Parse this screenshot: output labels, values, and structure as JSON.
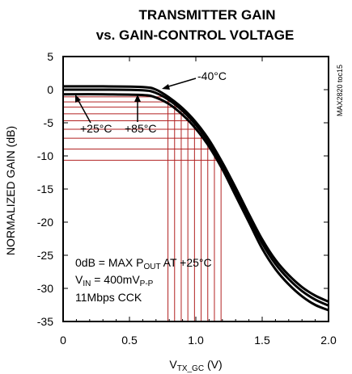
{
  "figure_id": "MAX2820 toc15",
  "chart_data": {
    "type": "line",
    "title_line1": "TRANSMITTER GAIN",
    "title_line2": "vs. GAIN-CONTROL VOLTAGE",
    "xlabel": "V",
    "xlabel_sub": "TX_GC",
    "xlabel_unit": " (V)",
    "ylabel": "NORMALIZED GAIN (dB)",
    "xlim": [
      0,
      2.0
    ],
    "ylim": [
      -35,
      5
    ],
    "xticks": [
      0,
      0.5,
      1.0,
      1.5,
      2.0
    ],
    "xtick_labels": [
      "0",
      "0.5",
      "1.0",
      "1.5",
      "2.0"
    ],
    "yticks": [
      5,
      0,
      -5,
      -10,
      -15,
      -20,
      -25,
      -30,
      -35
    ],
    "ytick_labels": [
      "5",
      "0",
      "-5",
      "-10",
      "-15",
      "-20",
      "-25",
      "-30",
      "-35"
    ],
    "series": [
      {
        "name": "-40°C",
        "x": [
          0,
          0.3,
          0.6,
          0.7,
          0.8,
          0.9,
          1.0,
          1.1,
          1.2,
          1.3,
          1.4,
          1.5,
          1.6,
          1.7,
          1.8,
          1.9,
          2.0
        ],
        "y": [
          0.5,
          0.5,
          0.4,
          0.0,
          -1.2,
          -2.8,
          -4.9,
          -7.6,
          -11.0,
          -14.8,
          -18.8,
          -22.6,
          -25.7,
          -28.0,
          -29.8,
          -31.1,
          -32.0
        ]
      },
      {
        "name": "+25°C",
        "x": [
          0,
          0.3,
          0.6,
          0.7,
          0.8,
          0.9,
          1.0,
          1.1,
          1.2,
          1.3,
          1.4,
          1.5,
          1.6,
          1.7,
          1.8,
          1.9,
          2.0
        ],
        "y": [
          0.0,
          0.0,
          -0.1,
          -0.5,
          -1.6,
          -3.2,
          -5.3,
          -8.0,
          -11.4,
          -15.3,
          -19.3,
          -23.2,
          -26.3,
          -28.6,
          -30.4,
          -31.7,
          -32.6
        ]
      },
      {
        "name": "+85°C",
        "x": [
          0,
          0.3,
          0.6,
          0.7,
          0.8,
          0.9,
          1.0,
          1.1,
          1.2,
          1.3,
          1.4,
          1.5,
          1.6,
          1.7,
          1.8,
          1.9,
          2.0
        ],
        "y": [
          -0.7,
          -0.7,
          -0.8,
          -1.2,
          -2.2,
          -3.8,
          -5.9,
          -8.6,
          -12.0,
          -16.0,
          -20.0,
          -24.0,
          -27.1,
          -29.4,
          -31.2,
          -32.5,
          -33.3
        ]
      }
    ],
    "reference_markers_x": [
      0.79,
      0.84,
      0.89,
      0.94,
      0.99,
      1.04,
      1.09,
      1.14,
      1.19
    ],
    "reference_marker_color": "#b22222",
    "curve_color": "#000000",
    "annotations": {
      "label_m40": "-40°C",
      "label_p25": "+25°C",
      "label_p85": "+85°C",
      "cond1_pre": "0dB = MAX P",
      "cond1_sub": "OUT",
      "cond1_post": " AT +25°C",
      "cond2_pre": "V",
      "cond2_sub1": "IN",
      "cond2_mid": " = 400mV",
      "cond2_sub2": "P-P",
      "cond3": "11Mbps CCK"
    }
  }
}
